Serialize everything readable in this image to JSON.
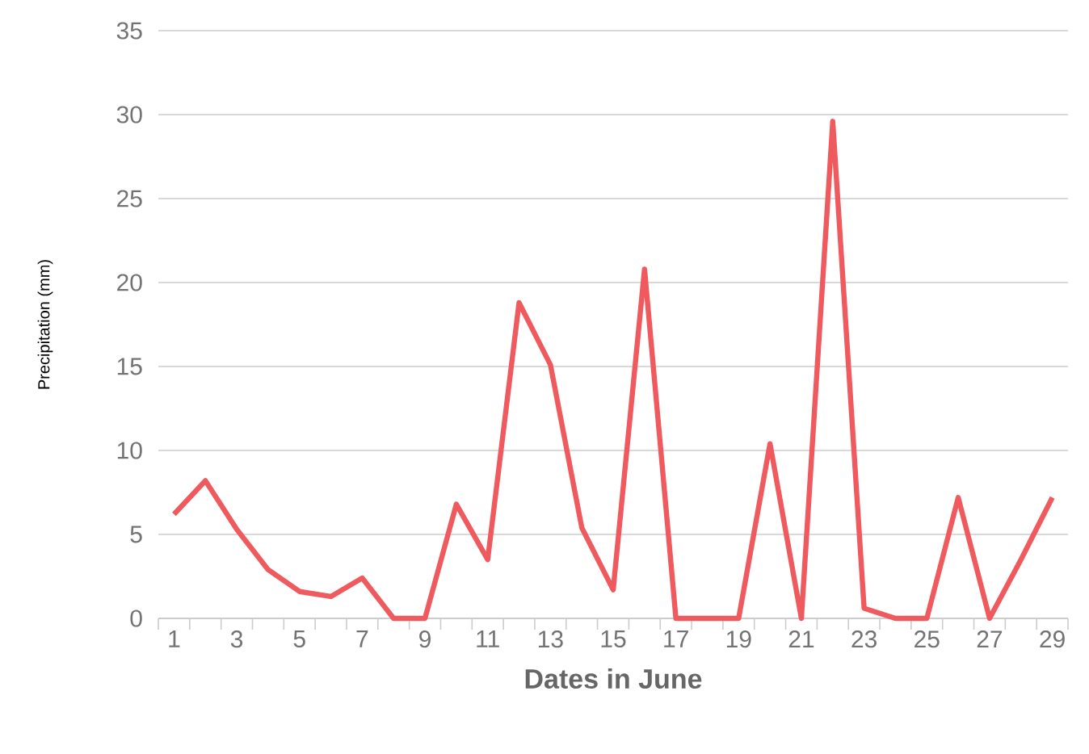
{
  "chart_data": {
    "type": "line",
    "xlabel": "Dates in June",
    "ylabel": "Precipitation (mm)",
    "categories": [
      "1",
      null,
      "3",
      null,
      "5",
      null,
      "7",
      null,
      "9",
      null,
      "11",
      null,
      "13",
      null,
      "15",
      null,
      "17",
      null,
      "19",
      null,
      "21",
      null,
      "23",
      null,
      "25",
      null,
      "27",
      null,
      "29"
    ],
    "series": [
      {
        "color": "#ef5a5e",
        "values": [
          6.2,
          8.2,
          5.3,
          2.9,
          1.6,
          1.3,
          2.4,
          0,
          0,
          6.8,
          3.5,
          18.8,
          15.1,
          5.4,
          1.7,
          20.8,
          0,
          0,
          0,
          10.4,
          0,
          29.6,
          0.6,
          0,
          0,
          7.2,
          0,
          3.5,
          7.2
        ]
      }
    ],
    "ylim": [
      0,
      35
    ],
    "yticks": [
      0,
      5,
      10,
      15,
      20,
      25,
      30,
      35
    ],
    "grid": "y",
    "marker": "none",
    "line_style": "solid"
  }
}
